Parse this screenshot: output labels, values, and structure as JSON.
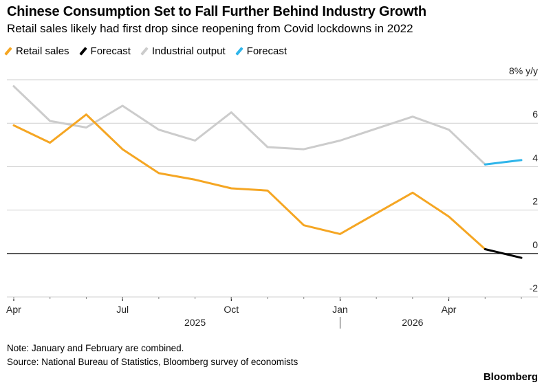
{
  "title": "Chinese Consumption Set to Fall Further Behind Industry Growth",
  "subtitle": "Retail sales likely had first drop since reopening from Covid lockdowns in 2022",
  "note": "Note: January and February are combined.",
  "source": "Source: National Bureau of Statistics, Bloomberg survey of economists",
  "brand": "Bloomberg",
  "colors": {
    "retail": "#f5a623",
    "retail_forecast": "#000000",
    "industrial": "#cccccc",
    "industrial_forecast": "#2fb5ea"
  },
  "chart_data": {
    "type": "line",
    "x": [
      "2025-04",
      "2025-05",
      "2025-06",
      "2025-07",
      "2025-08",
      "2025-09",
      "2025-10",
      "2025-11",
      "2025-12",
      "2026-01",
      "2026-03",
      "2026-04",
      "2026-05",
      "2026-06"
    ],
    "legend": [
      "Retail sales",
      "Forecast",
      "Industrial output",
      "Forecast"
    ],
    "legend_position": "top-left",
    "series": [
      {
        "name": "Retail sales",
        "color": "#f5a623",
        "x": [
          "2025-04",
          "2025-05",
          "2025-06",
          "2025-07",
          "2025-08",
          "2025-09",
          "2025-10",
          "2025-11",
          "2025-12",
          "2026-01",
          "2026-03",
          "2026-04",
          "2026-05"
        ],
        "values": [
          5.9,
          5.1,
          6.4,
          4.8,
          3.7,
          3.4,
          3.0,
          2.9,
          1.3,
          0.9,
          2.8,
          1.7,
          0.2
        ]
      },
      {
        "name": "Forecast",
        "color": "#000000",
        "x": [
          "2026-05",
          "2026-06"
        ],
        "values": [
          0.2,
          -0.2
        ]
      },
      {
        "name": "Industrial output",
        "color": "#cccccc",
        "x": [
          "2025-04",
          "2025-05",
          "2025-06",
          "2025-07",
          "2025-08",
          "2025-09",
          "2025-10",
          "2025-11",
          "2025-12",
          "2026-01",
          "2026-03",
          "2026-04",
          "2026-05"
        ],
        "values": [
          7.7,
          6.1,
          5.8,
          6.8,
          5.7,
          5.2,
          6.5,
          4.9,
          4.8,
          5.2,
          6.3,
          5.7,
          4.1
        ]
      },
      {
        "name": "Forecast",
        "color": "#2fb5ea",
        "x": [
          "2026-05",
          "2026-06"
        ],
        "values": [
          4.1,
          4.3
        ]
      }
    ],
    "y_ticks": [
      {
        "value": 8,
        "label": "8% y/y"
      },
      {
        "value": 6,
        "label": "6"
      },
      {
        "value": 4,
        "label": "4"
      },
      {
        "value": 2,
        "label": "2"
      },
      {
        "value": 0,
        "label": "0"
      },
      {
        "value": -2,
        "label": "-2"
      }
    ],
    "x_ticks": [
      {
        "value": "2025-04",
        "label": "Apr"
      },
      {
        "value": "2025-07",
        "label": "Jul"
      },
      {
        "value": "2025-10",
        "label": "Oct"
      },
      {
        "value": "2026-01",
        "label": "Jan"
      },
      {
        "value": "2026-04",
        "label": "Apr"
      }
    ],
    "year_labels": [
      {
        "value": "2025-09",
        "label": "2025"
      },
      {
        "value": "2026-03",
        "label": "2026"
      }
    ],
    "ylim": [
      -2,
      8
    ],
    "xlim": [
      "2025-04",
      "2026-06"
    ],
    "grid": true,
    "xlabel": "",
    "ylabel": ""
  }
}
